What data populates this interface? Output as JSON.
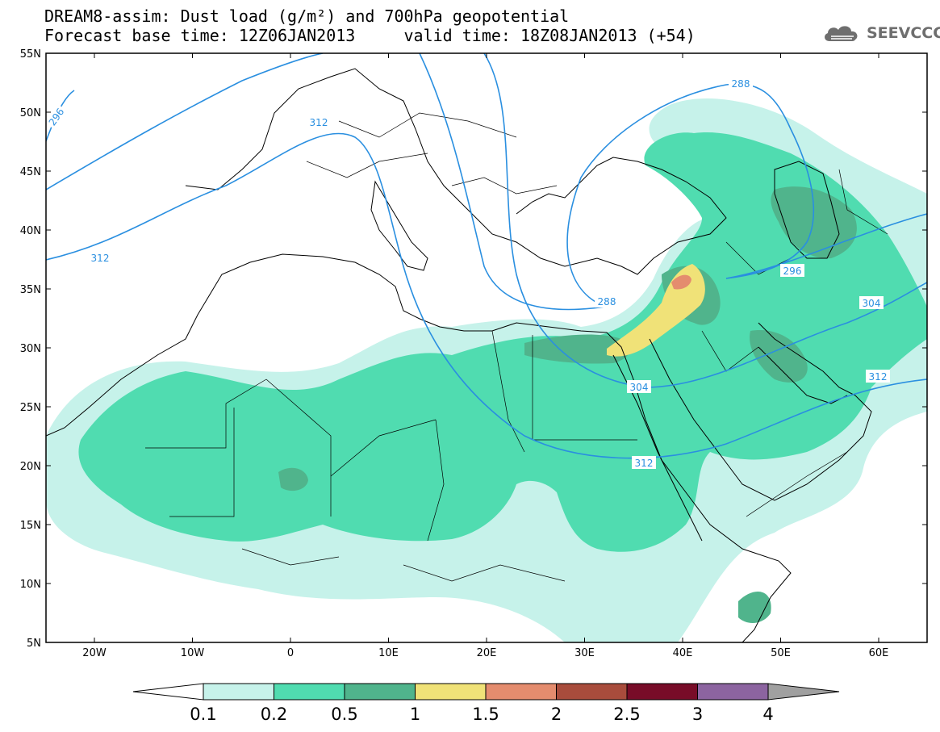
{
  "header": {
    "title_line1": "DREAM8-assim: Dust load (g/m²) and 700hPa geopotential",
    "title_line2": "Forecast base time: 12Z06JAN2013     valid time: 18Z08JAN2013 (+54)",
    "logo_text": "SEEVCCC",
    "logo_icon": "cloud-icon"
  },
  "map": {
    "lat_labels": [
      "55N",
      "50N",
      "45N",
      "40N",
      "35N",
      "30N",
      "25N",
      "20N",
      "15N",
      "10N",
      "5N"
    ],
    "lon_labels": [
      "20W",
      "10W",
      "0",
      "10E",
      "20E",
      "30E",
      "40E",
      "50E",
      "60E"
    ],
    "contour_labels": [
      "296",
      "312",
      "312",
      "288",
      "296",
      "304",
      "304",
      "312",
      "312",
      "288"
    ],
    "contour_color": "#2a8fe0"
  },
  "colorbar": {
    "labels": [
      "0.1",
      "0.2",
      "0.5",
      "1",
      "1.5",
      "2",
      "2.5",
      "3",
      "4"
    ],
    "colors": [
      "#c6f2ea",
      "#50dcb0",
      "#50b48c",
      "#f0e278",
      "#e48c6e",
      "#a84c3c",
      "#780c28",
      "#8c64a0"
    ],
    "low_color": "#ffffff",
    "high_color": "#a0a0a0"
  }
}
